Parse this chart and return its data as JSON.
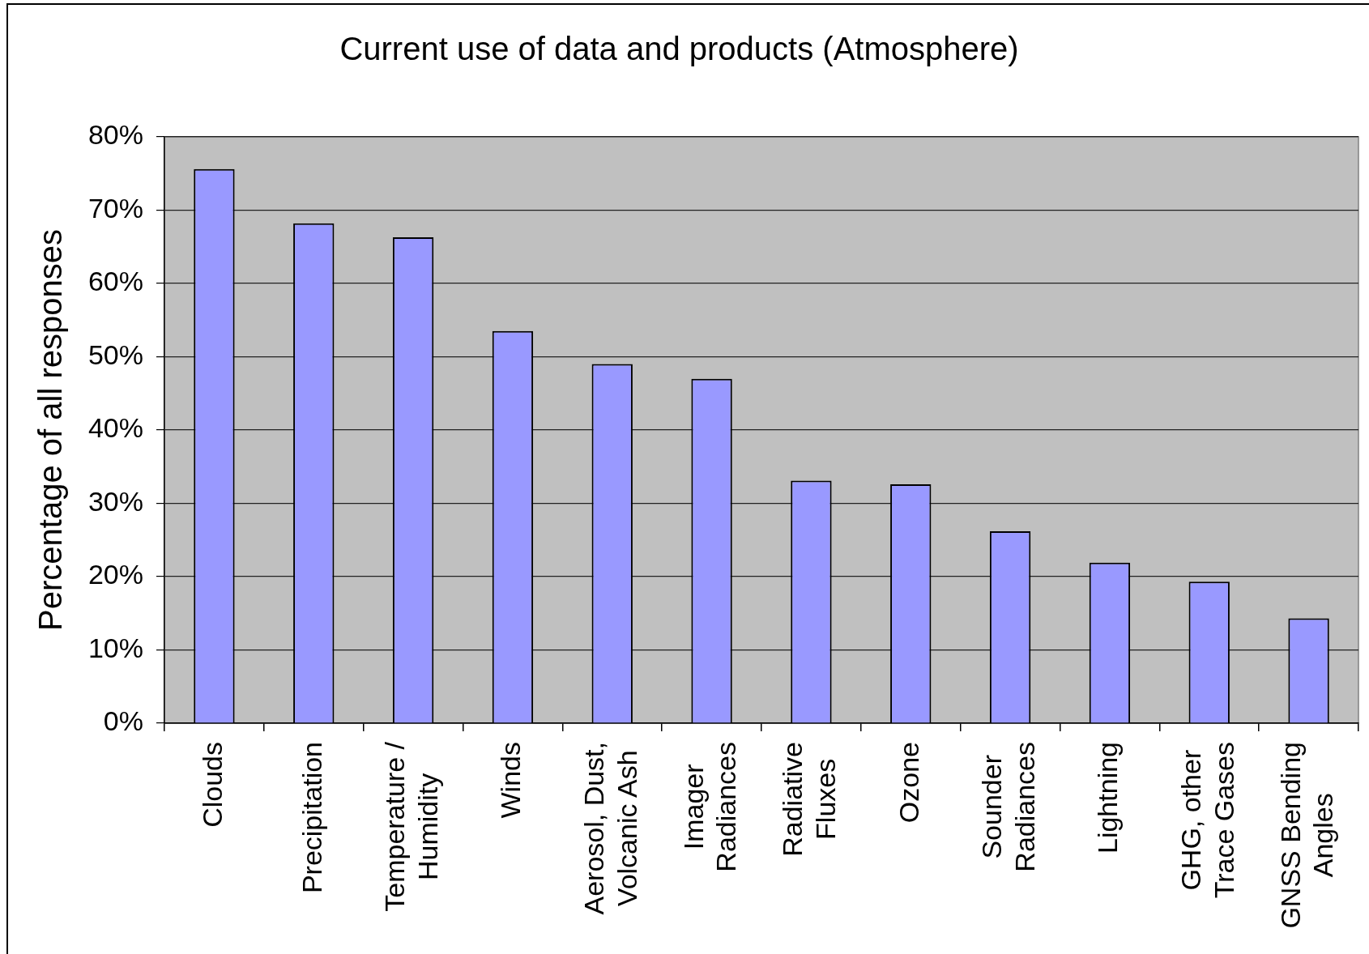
{
  "chart_data": {
    "type": "bar",
    "title": "Current use of data and products (Atmosphere)",
    "ylabel": "Percentage of all responses",
    "categories": [
      "Clouds",
      "Precipitation",
      "Temperature / Humidity",
      "Winds",
      "Aerosol, Dust, Volcanic Ash",
      "Imager Radiances",
      "Radiative Fluxes",
      "Ozone",
      "Sounder Radiances",
      "Lightning",
      "GHG, other Trace Gases",
      "GNSS Bending Angles"
    ],
    "values": [
      75.6,
      68.2,
      66.3,
      53.5,
      49.0,
      47.0,
      33.1,
      32.6,
      26.2,
      21.9,
      19.3,
      14.3
    ],
    "color": "#9999ff",
    "ylim": [
      0,
      80
    ],
    "yticks": [
      {
        "value": 0,
        "label": "0%"
      },
      {
        "value": 10,
        "label": "10%"
      },
      {
        "value": 20,
        "label": "20%"
      },
      {
        "value": 30,
        "label": "30%"
      },
      {
        "value": 40,
        "label": "40%"
      },
      {
        "value": 50,
        "label": "50%"
      },
      {
        "value": 60,
        "label": "60%"
      },
      {
        "value": 70,
        "label": "70%"
      },
      {
        "value": 80,
        "label": "80%"
      }
    ],
    "grid": "y"
  }
}
